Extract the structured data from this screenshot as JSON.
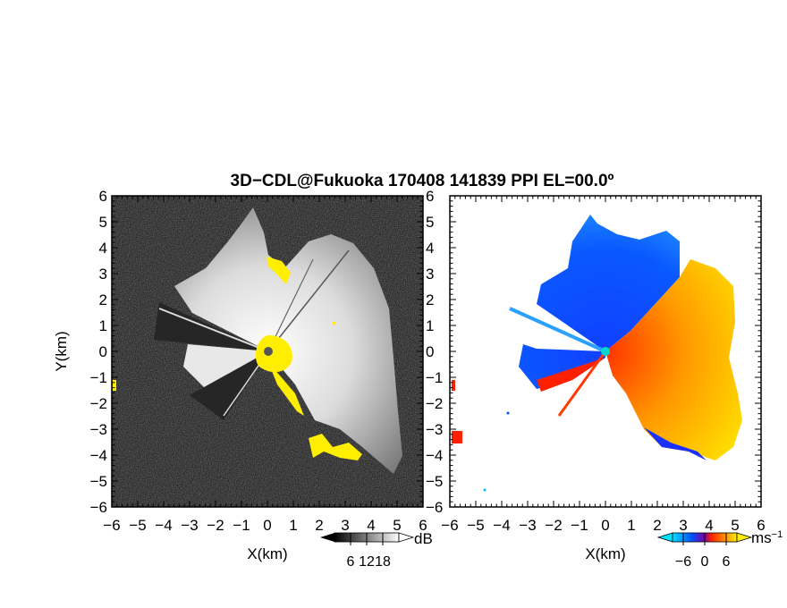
{
  "chart_data": {
    "title": "3D−CDL@Fukuoka 170408 141839 PPI EL=00.0º",
    "panels": [
      {
        "type": "heatmap",
        "quantity": "reflectivity / SNR",
        "xlabel": "X(km)",
        "ylabel": "Y(km)",
        "xlim": [
          -6,
          6
        ],
        "ylim": [
          -6,
          6
        ],
        "xticks": [
          "−6",
          "−5",
          "−4",
          "−3",
          "−2",
          "−1",
          "0",
          "1",
          "2",
          "3",
          "4",
          "5",
          "6"
        ],
        "yticks": [
          "6",
          "5",
          "4",
          "3",
          "2",
          "1",
          "0",
          "−1",
          "−2",
          "−3",
          "−4",
          "−5",
          "−6"
        ],
        "colorbar": {
          "unit": "dB",
          "ticks": [
            "6",
            "12",
            "18"
          ],
          "range": [
            0,
            24
          ],
          "colors": [
            "#000000",
            "#ffffff"
          ]
        },
        "background_color": "#2b2b2b",
        "highlight_color": "#ffee00"
      },
      {
        "type": "heatmap",
        "quantity": "radial velocity",
        "xlabel": "X(km)",
        "xlim": [
          -6,
          6
        ],
        "ylim": [
          -6,
          6
        ],
        "xticks": [
          "−6",
          "−5",
          "−4",
          "−3",
          "−2",
          "−1",
          "0",
          "1",
          "2",
          "3",
          "4",
          "5",
          "6"
        ],
        "colorbar": {
          "unit": "ms",
          "unit_sup": "−1",
          "ticks": [
            "−6",
            "0",
            "6"
          ],
          "range": [
            -9,
            9
          ],
          "colors": [
            "#00e0ff",
            "#0050ff",
            "#ff2000",
            "#ffee00"
          ]
        },
        "site_marker_color": "#00d8d0"
      }
    ]
  }
}
